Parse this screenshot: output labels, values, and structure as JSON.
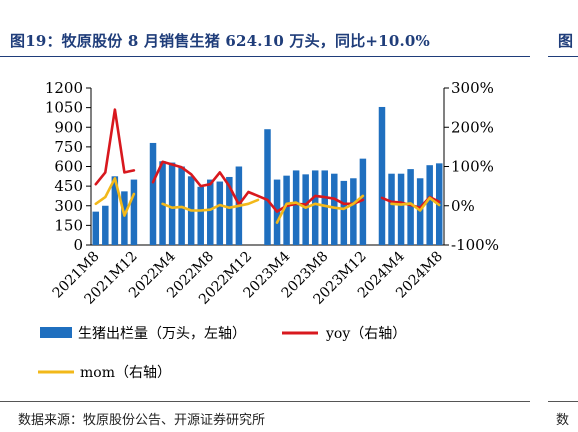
{
  "title": "图19：牧原股份 8 月销售生猪 624.10 万头，同比+10.0%",
  "title_next": "图",
  "source": "数据来源：牧原股份公告、开源证券研究所",
  "source_next": "数",
  "colors": {
    "bar": "#1f6fbf",
    "yoy": "#d8181e",
    "mom": "#f2b81a",
    "title": "#1f3d7a"
  },
  "chart_data": {
    "type": "bar",
    "x_tick_labels": [
      "2021M8",
      "2021M12",
      "2022M4",
      "2022M8",
      "2022M12",
      "2023M4",
      "2023M8",
      "2023M12",
      "2024M4",
      "2024M8"
    ],
    "y_left": {
      "ticks": [
        0,
        150,
        300,
        450,
        600,
        750,
        900,
        1050,
        1200
      ],
      "range": [
        0,
        1200
      ]
    },
    "y_right": {
      "ticks": [
        "-100%",
        "0%",
        "100%",
        "200%",
        "300%"
      ],
      "range": [
        -100,
        300
      ]
    },
    "legend": {
      "bar": "生猪出栏量（万头，左轴）",
      "yoy": "yoy（右轴）",
      "mom": "mom（右轴）",
      "placement": "bottom"
    },
    "series": [
      {
        "name": "生猪出栏量（万头，左轴）",
        "kind": "bar",
        "axis": "left",
        "points": [
          {
            "x": "2021M8",
            "y": 255
          },
          {
            "x": "2021M9",
            "y": 300
          },
          {
            "x": "2021M10",
            "y": 525
          },
          {
            "x": "2021M11",
            "y": 410
          },
          {
            "x": "2021M12",
            "y": 500
          },
          {
            "x": "2022M2",
            "y": 780
          },
          {
            "x": "2022M3",
            "y": 640
          },
          {
            "x": "2022M4",
            "y": 630
          },
          {
            "x": "2022M5",
            "y": 600
          },
          {
            "x": "2022M6",
            "y": 525
          },
          {
            "x": "2022M7",
            "y": 445
          },
          {
            "x": "2022M8",
            "y": 500
          },
          {
            "x": "2022M9",
            "y": 485
          },
          {
            "x": "2022M10",
            "y": 520
          },
          {
            "x": "2022M11",
            "y": 600
          },
          {
            "x": "2023M2",
            "y": 885
          },
          {
            "x": "2023M3",
            "y": 500
          },
          {
            "x": "2023M4",
            "y": 530
          },
          {
            "x": "2023M5",
            "y": 570
          },
          {
            "x": "2023M6",
            "y": 540
          },
          {
            "x": "2023M7",
            "y": 570
          },
          {
            "x": "2023M8",
            "y": 570
          },
          {
            "x": "2023M9",
            "y": 545
          },
          {
            "x": "2023M10",
            "y": 490
          },
          {
            "x": "2023M11",
            "y": 510
          },
          {
            "x": "2023M12",
            "y": 660
          },
          {
            "x": "2024M2",
            "y": 1055
          },
          {
            "x": "2024M3",
            "y": 545
          },
          {
            "x": "2024M4",
            "y": 545
          },
          {
            "x": "2024M5",
            "y": 580
          },
          {
            "x": "2024M6",
            "y": 510
          },
          {
            "x": "2024M7",
            "y": 610
          },
          {
            "x": "2024M8",
            "y": 624.1
          }
        ]
      },
      {
        "name": "yoy（右轴）",
        "kind": "line",
        "axis": "right",
        "points": [
          {
            "x": "2021M8",
            "y": 55
          },
          {
            "x": "2021M9",
            "y": 85
          },
          {
            "x": "2021M10",
            "y": 245
          },
          {
            "x": "2021M11",
            "y": 85
          },
          {
            "x": "2021M12",
            "y": 90
          },
          {
            "x": "2022M2",
            "y": 60
          },
          {
            "x": "2022M3",
            "y": 112
          },
          {
            "x": "2022M4",
            "y": 105
          },
          {
            "x": "2022M5",
            "y": 98
          },
          {
            "x": "2022M6",
            "y": 80
          },
          {
            "x": "2022M7",
            "y": 50
          },
          {
            "x": "2022M8",
            "y": 55
          },
          {
            "x": "2022M9",
            "y": 85
          },
          {
            "x": "2022M10",
            "y": 50
          },
          {
            "x": "2022M11",
            "y": 3
          },
          {
            "x": "2022M12",
            "y": 35
          },
          {
            "x": "2023M1",
            "y": 25
          },
          {
            "x": "2023M2",
            "y": 15
          },
          {
            "x": "2023M3",
            "y": -15
          },
          {
            "x": "2023M4",
            "y": 0
          },
          {
            "x": "2023M5",
            "y": 5
          },
          {
            "x": "2023M6",
            "y": 3
          },
          {
            "x": "2023M7",
            "y": 25
          },
          {
            "x": "2023M8",
            "y": 22
          },
          {
            "x": "2023M9",
            "y": 18
          },
          {
            "x": "2023M10",
            "y": 5
          },
          {
            "x": "2023M11",
            "y": 5
          },
          {
            "x": "2023M12",
            "y": 15
          },
          {
            "x": "2024M2",
            "y": 20
          },
          {
            "x": "2024M3",
            "y": 10
          },
          {
            "x": "2024M4",
            "y": 8
          },
          {
            "x": "2024M5",
            "y": 2
          },
          {
            "x": "2024M6",
            "y": -5
          },
          {
            "x": "2024M7",
            "y": 22
          },
          {
            "x": "2024M8",
            "y": 10
          }
        ]
      },
      {
        "name": "mom（右轴）",
        "kind": "line",
        "axis": "right",
        "points": [
          {
            "x": "2021M8",
            "y": 5
          },
          {
            "x": "2021M9",
            "y": 22
          },
          {
            "x": "2021M10",
            "y": 70
          },
          {
            "x": "2021M11",
            "y": -25
          },
          {
            "x": "2021M12",
            "y": 30
          },
          {
            "x": "2022M3",
            "y": 5
          },
          {
            "x": "2022M4",
            "y": -5
          },
          {
            "x": "2022M5",
            "y": -3
          },
          {
            "x": "2022M6",
            "y": -12
          },
          {
            "x": "2022M7",
            "y": -12
          },
          {
            "x": "2022M8",
            "y": -10
          },
          {
            "x": "2022M9",
            "y": 2
          },
          {
            "x": "2022M10",
            "y": -5
          },
          {
            "x": "2022M11",
            "y": 0
          },
          {
            "x": "2022M12",
            "y": 5
          },
          {
            "x": "2023M1",
            "y": 15
          },
          {
            "x": "2023M3",
            "y": -43
          },
          {
            "x": "2023M4",
            "y": 5
          },
          {
            "x": "2023M5",
            "y": 8
          },
          {
            "x": "2023M6",
            "y": -5
          },
          {
            "x": "2023M7",
            "y": 5
          },
          {
            "x": "2023M8",
            "y": 0
          },
          {
            "x": "2023M9",
            "y": -5
          },
          {
            "x": "2023M10",
            "y": -8
          },
          {
            "x": "2023M11",
            "y": 5
          },
          {
            "x": "2023M12",
            "y": 25
          },
          {
            "x": "2024M3",
            "y": 5
          },
          {
            "x": "2024M4",
            "y": 3
          },
          {
            "x": "2024M5",
            "y": 6
          },
          {
            "x": "2024M6",
            "y": -12
          },
          {
            "x": "2024M7",
            "y": 20
          },
          {
            "x": "2024M8",
            "y": 2
          }
        ]
      }
    ]
  }
}
